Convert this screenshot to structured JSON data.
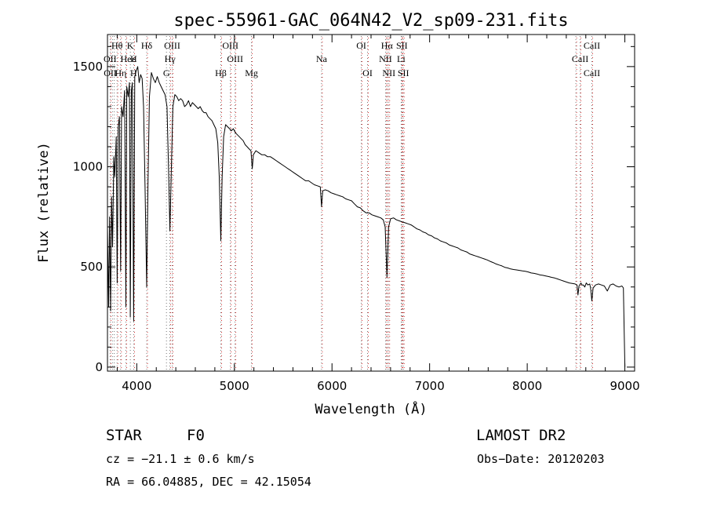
{
  "chart_data": {
    "type": "line",
    "title": "spec-55961-GAC_064N42_V2_sp09-231.fits",
    "xlabel": "Wavelength (Å)",
    "ylabel": "Flux (relative)",
    "xlim": [
      3700,
      9100
    ],
    "ylim": [
      -20,
      1660
    ],
    "x_ticks": [
      4000,
      5000,
      6000,
      7000,
      8000,
      9000
    ],
    "y_ticks": [
      0,
      500,
      1000,
      1500
    ],
    "grid": false,
    "series": [
      {
        "points": [
          [
            3700,
            700
          ],
          [
            3712,
            300
          ],
          [
            3722,
            750
          ],
          [
            3732,
            280
          ],
          [
            3742,
            850
          ],
          [
            3752,
            600
          ],
          [
            3765,
            1050
          ],
          [
            3775,
            950
          ],
          [
            3790,
            1150
          ],
          [
            3800,
            420
          ],
          [
            3810,
            1200
          ],
          [
            3822,
            1250
          ],
          [
            3835,
            480
          ],
          [
            3845,
            1300
          ],
          [
            3860,
            1250
          ],
          [
            3875,
            1380
          ],
          [
            3889,
            300
          ],
          [
            3898,
            1400
          ],
          [
            3912,
            1350
          ],
          [
            3925,
            1420
          ],
          [
            3934,
            250
          ],
          [
            3945,
            1380
          ],
          [
            3955,
            1420
          ],
          [
            3968,
            230
          ],
          [
            3980,
            1450
          ],
          [
            3995,
            1480
          ],
          [
            4010,
            1500
          ],
          [
            4025,
            1420
          ],
          [
            4040,
            1460
          ],
          [
            4055,
            1440
          ],
          [
            4070,
            1300
          ],
          [
            4085,
            900
          ],
          [
            4102,
            400
          ],
          [
            4115,
            900
          ],
          [
            4130,
            1350
          ],
          [
            4150,
            1470
          ],
          [
            4170,
            1440
          ],
          [
            4190,
            1420
          ],
          [
            4210,
            1450
          ],
          [
            4230,
            1420
          ],
          [
            4250,
            1400
          ],
          [
            4270,
            1380
          ],
          [
            4290,
            1360
          ],
          [
            4310,
            1300
          ],
          [
            4325,
            1000
          ],
          [
            4340,
            680
          ],
          [
            4355,
            1000
          ],
          [
            4370,
            1300
          ],
          [
            4390,
            1360
          ],
          [
            4410,
            1350
          ],
          [
            4430,
            1330
          ],
          [
            4450,
            1340
          ],
          [
            4470,
            1330
          ],
          [
            4490,
            1300
          ],
          [
            4510,
            1310
          ],
          [
            4530,
            1330
          ],
          [
            4550,
            1300
          ],
          [
            4570,
            1320
          ],
          [
            4590,
            1310
          ],
          [
            4610,
            1300
          ],
          [
            4630,
            1290
          ],
          [
            4650,
            1300
          ],
          [
            4670,
            1280
          ],
          [
            4690,
            1270
          ],
          [
            4710,
            1270
          ],
          [
            4730,
            1250
          ],
          [
            4750,
            1240
          ],
          [
            4770,
            1230
          ],
          [
            4790,
            1210
          ],
          [
            4810,
            1190
          ],
          [
            4830,
            1120
          ],
          [
            4845,
            950
          ],
          [
            4861,
            630
          ],
          [
            4875,
            950
          ],
          [
            4890,
            1150
          ],
          [
            4910,
            1210
          ],
          [
            4930,
            1200
          ],
          [
            4950,
            1190
          ],
          [
            4970,
            1180
          ],
          [
            4990,
            1190
          ],
          [
            5010,
            1170
          ],
          [
            5030,
            1160
          ],
          [
            5050,
            1150
          ],
          [
            5070,
            1140
          ],
          [
            5090,
            1130
          ],
          [
            5110,
            1110
          ],
          [
            5130,
            1100
          ],
          [
            5150,
            1090
          ],
          [
            5170,
            1080
          ],
          [
            5183,
            990
          ],
          [
            5195,
            1060
          ],
          [
            5220,
            1080
          ],
          [
            5250,
            1070
          ],
          [
            5280,
            1060
          ],
          [
            5310,
            1060
          ],
          [
            5340,
            1050
          ],
          [
            5370,
            1050
          ],
          [
            5400,
            1040
          ],
          [
            5430,
            1030
          ],
          [
            5460,
            1020
          ],
          [
            5490,
            1010
          ],
          [
            5520,
            1000
          ],
          [
            5550,
            990
          ],
          [
            5580,
            980
          ],
          [
            5610,
            970
          ],
          [
            5640,
            960
          ],
          [
            5670,
            950
          ],
          [
            5700,
            940
          ],
          [
            5730,
            930
          ],
          [
            5760,
            930
          ],
          [
            5790,
            920
          ],
          [
            5820,
            910
          ],
          [
            5850,
            905
          ],
          [
            5880,
            900
          ],
          [
            5893,
            800
          ],
          [
            5905,
            880
          ],
          [
            5930,
            885
          ],
          [
            5960,
            880
          ],
          [
            5990,
            870
          ],
          [
            6020,
            865
          ],
          [
            6050,
            860
          ],
          [
            6080,
            855
          ],
          [
            6110,
            850
          ],
          [
            6140,
            840
          ],
          [
            6170,
            835
          ],
          [
            6200,
            830
          ],
          [
            6230,
            815
          ],
          [
            6260,
            800
          ],
          [
            6290,
            795
          ],
          [
            6320,
            780
          ],
          [
            6350,
            770
          ],
          [
            6380,
            770
          ],
          [
            6410,
            760
          ],
          [
            6440,
            755
          ],
          [
            6470,
            750
          ],
          [
            6500,
            745
          ],
          [
            6525,
            735
          ],
          [
            6545,
            700
          ],
          [
            6563,
            450
          ],
          [
            6580,
            700
          ],
          [
            6600,
            740
          ],
          [
            6630,
            745
          ],
          [
            6660,
            735
          ],
          [
            6690,
            730
          ],
          [
            6720,
            725
          ],
          [
            6750,
            720
          ],
          [
            6780,
            715
          ],
          [
            6810,
            710
          ],
          [
            6840,
            700
          ],
          [
            6870,
            690
          ],
          [
            6900,
            685
          ],
          [
            6930,
            675
          ],
          [
            6960,
            670
          ],
          [
            6990,
            660
          ],
          [
            7020,
            655
          ],
          [
            7050,
            645
          ],
          [
            7080,
            640
          ],
          [
            7110,
            630
          ],
          [
            7140,
            625
          ],
          [
            7170,
            620
          ],
          [
            7200,
            610
          ],
          [
            7230,
            605
          ],
          [
            7260,
            600
          ],
          [
            7290,
            595
          ],
          [
            7320,
            585
          ],
          [
            7350,
            580
          ],
          [
            7380,
            575
          ],
          [
            7410,
            565
          ],
          [
            7440,
            560
          ],
          [
            7470,
            555
          ],
          [
            7500,
            550
          ],
          [
            7530,
            545
          ],
          [
            7560,
            540
          ],
          [
            7590,
            535
          ],
          [
            7620,
            528
          ],
          [
            7650,
            522
          ],
          [
            7680,
            515
          ],
          [
            7710,
            510
          ],
          [
            7740,
            505
          ],
          [
            7770,
            498
          ],
          [
            7800,
            495
          ],
          [
            7830,
            490
          ],
          [
            7860,
            487
          ],
          [
            7890,
            485
          ],
          [
            7920,
            483
          ],
          [
            7950,
            480
          ],
          [
            7980,
            478
          ],
          [
            8010,
            475
          ],
          [
            8040,
            470
          ],
          [
            8070,
            468
          ],
          [
            8100,
            465
          ],
          [
            8130,
            460
          ],
          [
            8160,
            458
          ],
          [
            8190,
            455
          ],
          [
            8220,
            452
          ],
          [
            8250,
            448
          ],
          [
            8280,
            445
          ],
          [
            8310,
            440
          ],
          [
            8340,
            435
          ],
          [
            8370,
            430
          ],
          [
            8400,
            425
          ],
          [
            8430,
            420
          ],
          [
            8460,
            418
          ],
          [
            8490,
            415
          ],
          [
            8510,
            410
          ],
          [
            8520,
            360
          ],
          [
            8530,
            405
          ],
          [
            8550,
            420
          ],
          [
            8560,
            410
          ],
          [
            8575,
            410
          ],
          [
            8590,
            400
          ],
          [
            8605,
            420
          ],
          [
            8620,
            410
          ],
          [
            8640,
            415
          ],
          [
            8650,
            390
          ],
          [
            8662,
            330
          ],
          [
            8675,
            395
          ],
          [
            8700,
            410
          ],
          [
            8730,
            415
          ],
          [
            8760,
            410
          ],
          [
            8790,
            405
          ],
          [
            8820,
            380
          ],
          [
            8850,
            410
          ],
          [
            8880,
            415
          ],
          [
            8910,
            405
          ],
          [
            8940,
            400
          ],
          [
            8970,
            405
          ],
          [
            8985,
            395
          ],
          [
            8992,
            200
          ],
          [
            9000,
            0
          ]
        ]
      }
    ],
    "line_markers": [
      {
        "label": "Hθ",
        "wl": 3798,
        "row": 0
      },
      {
        "label": "K",
        "wl": 3934,
        "row": 0
      },
      {
        "label": "Hδ",
        "wl": 4102,
        "row": 0
      },
      {
        "label": "OIII",
        "wl": 4363,
        "row": 0
      },
      {
        "label": "OIII",
        "wl": 4959,
        "row": 0
      },
      {
        "label": "OI",
        "wl": 6300,
        "row": 0
      },
      {
        "label": "Hα",
        "wl": 6563,
        "row": 0
      },
      {
        "label": "SII",
        "wl": 6716,
        "row": 0
      },
      {
        "label": "CaII",
        "wl": 8662,
        "row": 0
      },
      {
        "label": "OII",
        "wl": 3727,
        "row": 1
      },
      {
        "label": "He",
        "wl": 3889,
        "row": 1
      },
      {
        "label": "H",
        "wl": 3968,
        "row": 1
      },
      {
        "label": "ε",
        "wl": 3970,
        "row": 1
      },
      {
        "label": "Hγ",
        "wl": 4340,
        "row": 1
      },
      {
        "label": "OIII",
        "wl": 5007,
        "row": 1
      },
      {
        "label": "Na",
        "wl": 5893,
        "row": 1
      },
      {
        "label": "NII",
        "wl": 6548,
        "row": 1
      },
      {
        "label": "Li",
        "wl": 6708,
        "row": 1
      },
      {
        "label": "CaII",
        "wl": 8542,
        "row": 1
      },
      {
        "label": "OII",
        "wl": 3729,
        "row": 2
      },
      {
        "label": "Hη",
        "wl": 3835,
        "row": 2
      },
      {
        "label": "H",
        "wl": 3968,
        "row": 2
      },
      {
        "label": "G",
        "wl": 4304,
        "row": 2
      },
      {
        "label": "Hβ",
        "wl": 4861,
        "row": 2
      },
      {
        "label": "Mg",
        "wl": 5175,
        "row": 2
      },
      {
        "label": "OI",
        "wl": 6364,
        "row": 2
      },
      {
        "label": "NII",
        "wl": 6583,
        "row": 2
      },
      {
        "label": "SII",
        "wl": 6731,
        "row": 2
      },
      {
        "label": "CaII",
        "wl": 8662,
        "row": 2
      }
    ],
    "dotted_line_wavelengths": [
      3727,
      3750,
      3770,
      3798,
      3835,
      3889,
      3934,
      3968,
      4102,
      4304,
      4340,
      4363,
      4861,
      4959,
      5007,
      5175,
      5893,
      6300,
      6364,
      6548,
      6563,
      6583,
      6708,
      6716,
      6731,
      8498,
      8542,
      8662
    ],
    "red_line_wavelengths": [
      3727,
      3798,
      3835,
      3889,
      3970,
      4102,
      4340,
      4363,
      4861,
      4959,
      5007,
      5175,
      5893,
      6300,
      6364,
      6548,
      6563,
      6583,
      6708,
      6716,
      6731,
      8498,
      8542,
      8662
    ],
    "colors": {
      "spectrum": "#000000",
      "marker_dots_black": "#555555",
      "marker_dots_red": "#cc0000"
    }
  },
  "info": {
    "object_class": "STAR",
    "subclass": "F0",
    "survey": "LAMOST DR2",
    "cz": "cz = −21.1 ± 0.6 km/s",
    "obs_date": "Obs−Date: 20120203",
    "coords": "RA =  66.04885, DEC =  42.15054"
  }
}
